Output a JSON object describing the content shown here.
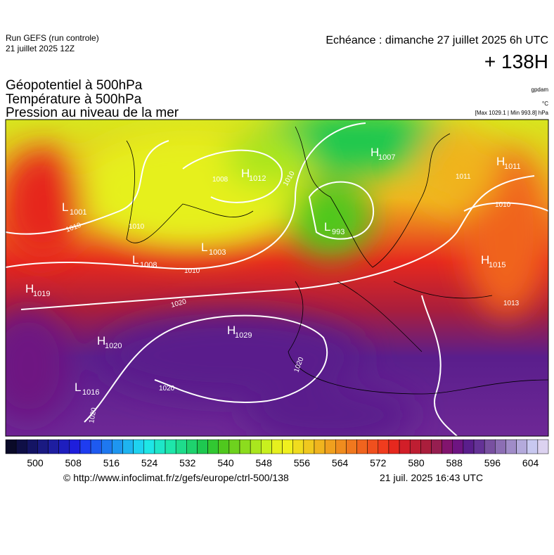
{
  "header": {
    "run": "Run GEFS (run controle)",
    "run_date": "21 juillet 2025 12Z",
    "valid": "Echéance : dimanche 27 juillet 2025 6h UTC",
    "lead": "+ 138H",
    "fields": [
      "Géopotentiel à 500hPa",
      "Température à 500hPa",
      "Pression au niveau de la mer"
    ],
    "units": [
      "gpdam",
      "°C",
      "[Max 1029.1 | Min 993.8] hPa"
    ]
  },
  "map": {
    "centers": [
      {
        "type": "L",
        "value": 1001
      },
      {
        "type": "H",
        "value": 1012
      },
      {
        "type": "H",
        "value": 1007
      },
      {
        "type": "H",
        "value": 1011
      },
      {
        "type": "L",
        "value": 993
      },
      {
        "type": "L",
        "value": 1003
      },
      {
        "type": "L",
        "value": 1008
      },
      {
        "type": "H",
        "value": 1015
      },
      {
        "type": "H",
        "value": 1019
      },
      {
        "type": "H",
        "value": 1029
      },
      {
        "type": "H",
        "value": 1020
      },
      {
        "type": "L",
        "value": 1016
      }
    ],
    "isobar_labels": [
      1010,
      1010,
      1010,
      1010,
      1008,
      1011,
      1010,
      1013,
      1020,
      1020,
      1020,
      1020
    ]
  },
  "colorbar": {
    "ticks": [
      500,
      508,
      516,
      524,
      532,
      540,
      548,
      556,
      564,
      572,
      580,
      588,
      596,
      604
    ],
    "colors": [
      "#0a0a28",
      "#0f0f46",
      "#141464",
      "#1a1a82",
      "#1e1ea0",
      "#1e1ebe",
      "#1e1edc",
      "#1e3cf0",
      "#1e5af0",
      "#1e78f0",
      "#1e96f0",
      "#1eb4f0",
      "#1ed2f0",
      "#1ee6e6",
      "#1ee6c8",
      "#1ee6aa",
      "#1edc8c",
      "#1ed26e",
      "#1ec850",
      "#32c832",
      "#50c81e",
      "#6ed21e",
      "#8cdc1e",
      "#aae61e",
      "#c8f01e",
      "#e6f01e",
      "#f0f01e",
      "#f0dc1e",
      "#f0c81e",
      "#f0b41e",
      "#f0a01e",
      "#f08c1e",
      "#f0781e",
      "#f0641e",
      "#f0501e",
      "#f03c1e",
      "#e6281e",
      "#d21e28",
      "#be1e32",
      "#aa1e3c",
      "#961e50",
      "#82146e",
      "#6e1482",
      "#5a1e8c",
      "#643296",
      "#7850a0",
      "#8c6eb4",
      "#a08cc8",
      "#b4aadc",
      "#c8c8f0",
      "#dcd2f0"
    ]
  },
  "footer": {
    "source": "© http://www.infoclimat.fr/z/gefs/europe/ctrl-500/138",
    "generated": "21 juil. 2025 16:43 UTC"
  }
}
